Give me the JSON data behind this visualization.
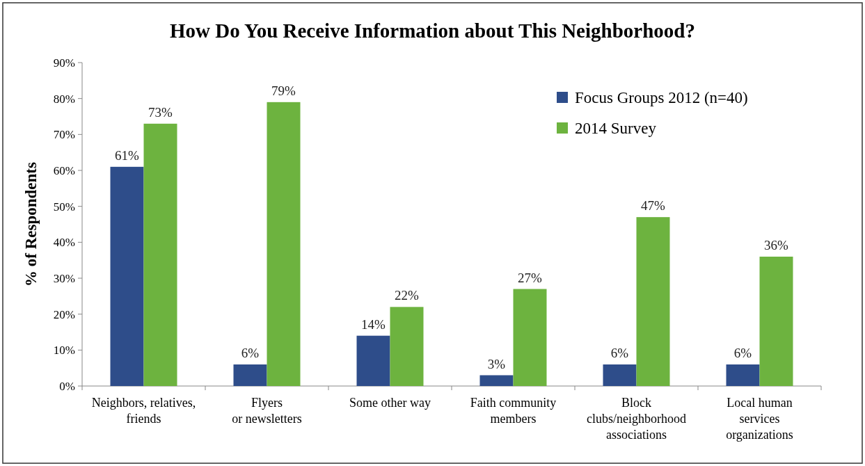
{
  "chart_data": {
    "type": "bar",
    "title": "How Do You Receive Information about This Neighborhood?",
    "ylabel": "% of Respondents",
    "categories": [
      "Neighbors, relatives,\nfriends",
      "Flyers\nor newsletters",
      "Some other way",
      "Faith community\nmembers",
      "Block\nclubs/neighborhood\nassociations",
      "Local human\nservices\norganizations"
    ],
    "series": [
      {
        "name": "Focus Groups 2012 (n=40)",
        "color": "#2e4d8a",
        "values": [
          61,
          6,
          14,
          3,
          6,
          6
        ],
        "value_labels": [
          "61%",
          "6%",
          "14%",
          "3%",
          "6%",
          "6%"
        ]
      },
      {
        "name": "2014 Survey",
        "color": "#6db33f",
        "values": [
          73,
          79,
          22,
          27,
          47,
          36
        ],
        "value_labels": [
          "73%",
          "79%",
          "22%",
          "27%",
          "47%",
          "36%"
        ]
      }
    ],
    "ylim": [
      0,
      90
    ],
    "yticks": [
      {
        "value": 0,
        "label": "0%"
      },
      {
        "value": 10,
        "label": "10%"
      },
      {
        "value": 20,
        "label": "20%"
      },
      {
        "value": 30,
        "label": "30%"
      },
      {
        "value": 40,
        "label": "40%"
      },
      {
        "value": 50,
        "label": "50%"
      },
      {
        "value": 60,
        "label": "60%"
      },
      {
        "value": 70,
        "label": "70%"
      },
      {
        "value": 80,
        "label": "80%"
      },
      {
        "value": 90,
        "label": "90%"
      }
    ],
    "grid": false,
    "legend": "top right"
  }
}
